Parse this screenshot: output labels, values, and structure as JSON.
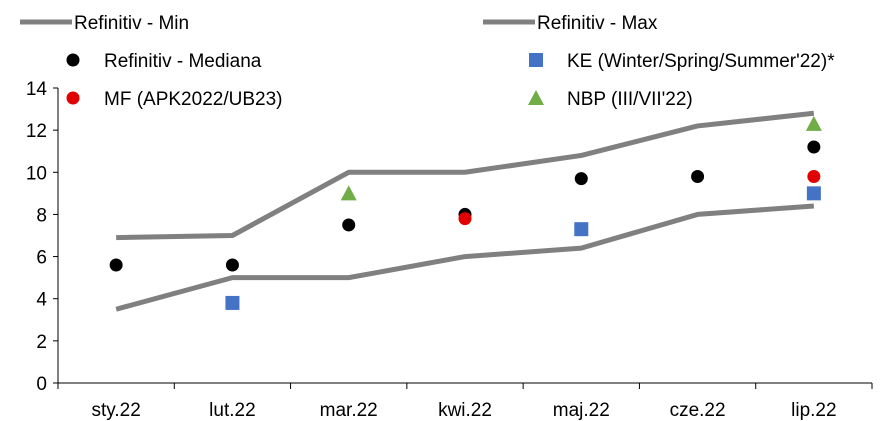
{
  "chart_data": {
    "type": "line",
    "title": "",
    "xlabel": "",
    "ylabel": "",
    "categories": [
      "sty.22",
      "lut.22",
      "mar.22",
      "kwi.22",
      "maj.22",
      "cze.22",
      "lip.22"
    ],
    "ylim": [
      0,
      14
    ],
    "yticks": [
      0,
      2,
      4,
      6,
      8,
      10,
      12,
      14
    ],
    "grid": false,
    "legend_position": "top",
    "series": [
      {
        "name": "Refinitiv - Min",
        "type": "line",
        "color": "#808080",
        "values": [
          3.5,
          5.0,
          5.0,
          6.0,
          6.4,
          8.0,
          8.4
        ]
      },
      {
        "name": "Refinitiv - Max",
        "type": "line",
        "color": "#808080",
        "values": [
          6.9,
          7.0,
          10.0,
          10.0,
          10.8,
          12.2,
          12.8
        ]
      },
      {
        "name": "Refinitiv - Mediana",
        "type": "scatter",
        "marker": "circle",
        "color": "#000000",
        "values": [
          5.6,
          5.6,
          7.5,
          8.0,
          9.7,
          9.8,
          11.2
        ]
      },
      {
        "name": "KE (Winter/Spring/Summer'22)*",
        "type": "scatter",
        "marker": "square",
        "color": "#4472c4",
        "values": [
          null,
          3.8,
          null,
          null,
          7.3,
          null,
          9.0
        ]
      },
      {
        "name": "MF (APK2022/UB23)",
        "type": "scatter",
        "marker": "circle",
        "color": "#e00000",
        "values": [
          null,
          null,
          null,
          7.8,
          null,
          null,
          9.8
        ]
      },
      {
        "name": "NBP (III/VII'22)",
        "type": "scatter",
        "marker": "triangle",
        "color": "#70ad47",
        "values": [
          null,
          null,
          9.0,
          null,
          null,
          null,
          12.3
        ]
      }
    ]
  }
}
